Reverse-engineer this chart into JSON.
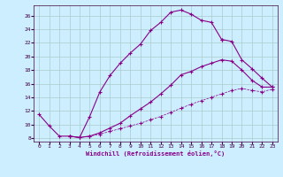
{
  "xlabel": "Windchill (Refroidissement éolien,°C)",
  "bg_color": "#cceeff",
  "grid_color": "#aacccc",
  "line_color": "#880088",
  "xlim": [
    -0.5,
    23.5
  ],
  "ylim": [
    7.5,
    27.5
  ],
  "yticks": [
    8,
    10,
    12,
    14,
    16,
    18,
    20,
    22,
    24,
    26
  ],
  "xticks": [
    0,
    1,
    2,
    3,
    4,
    5,
    6,
    7,
    8,
    9,
    10,
    11,
    12,
    13,
    14,
    15,
    16,
    17,
    18,
    19,
    20,
    21,
    22,
    23
  ],
  "curve1_x": [
    0,
    1,
    2,
    3,
    4,
    5,
    6,
    7,
    8,
    9,
    10,
    11,
    12,
    13,
    14,
    15,
    16,
    17,
    18
  ],
  "curve1_y": [
    11.5,
    9.8,
    8.3,
    8.3,
    8.1,
    11.2,
    14.8,
    17.2,
    19.0,
    20.5,
    21.8,
    23.8,
    25.0,
    26.5,
    26.8,
    26.2,
    25.3,
    25.0,
    22.5
  ],
  "curve2_x": [
    3,
    4,
    5,
    6,
    7,
    8,
    9,
    10,
    11,
    12,
    13,
    14,
    15,
    16,
    17,
    18,
    19,
    20,
    21,
    22,
    23
  ],
  "curve2_y": [
    8.3,
    8.1,
    8.3,
    8.8,
    9.5,
    10.2,
    11.3,
    12.3,
    13.3,
    14.5,
    15.8,
    17.3,
    17.8,
    18.5,
    19.0,
    19.5,
    19.3,
    18.0,
    16.5,
    15.5,
    15.5
  ],
  "curve3_x": [
    3,
    4,
    5,
    6,
    7,
    8,
    9,
    10,
    11,
    12,
    13,
    14,
    15,
    16,
    17,
    18,
    19,
    20,
    21,
    22,
    23
  ],
  "curve3_y": [
    8.3,
    8.1,
    8.3,
    8.6,
    9.0,
    9.4,
    9.8,
    10.2,
    10.7,
    11.2,
    11.8,
    12.4,
    13.0,
    13.5,
    14.0,
    14.5,
    15.0,
    15.3,
    15.0,
    14.8,
    15.2
  ],
  "curve4_x": [
    18,
    19,
    20,
    21,
    22,
    23
  ],
  "curve4_y": [
    22.5,
    22.2,
    19.5,
    18.2,
    16.8,
    15.5
  ]
}
